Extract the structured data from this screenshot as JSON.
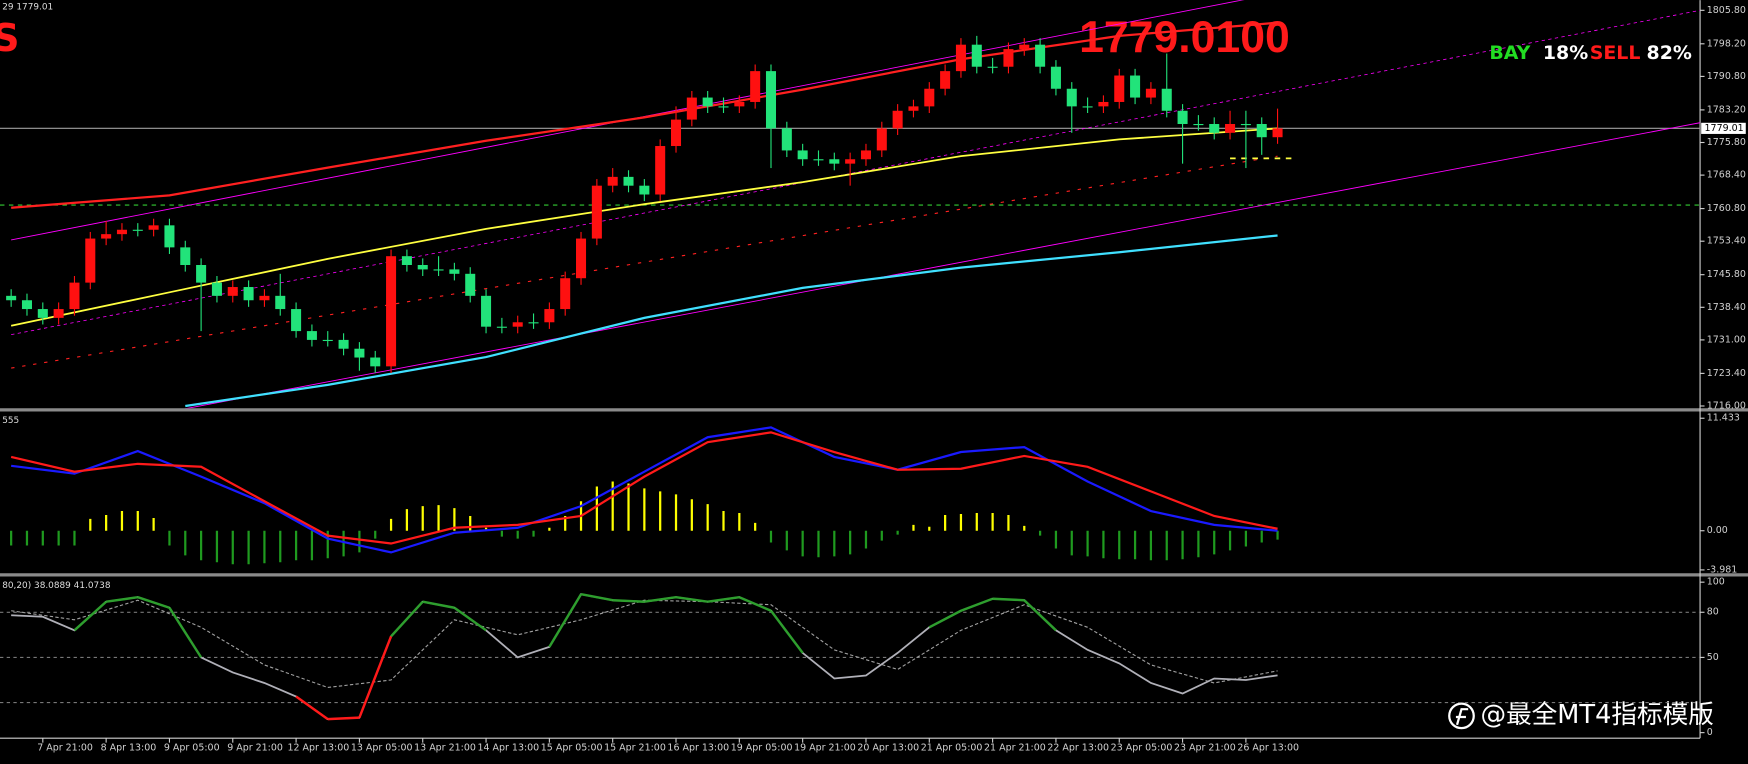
{
  "chart_data": [
    {
      "type": "candlestick",
      "title": "1779.0100",
      "header": "29 1779.01",
      "corner_text": "S",
      "sentiment": [
        {
          "name": "BAY",
          "value": 18,
          "value_label": "18%",
          "color": "#22dd22"
        },
        {
          "name": "SELL",
          "value": 82,
          "value_label": "82%",
          "color": "#ff1a1a"
        }
      ],
      "categories": [
        null,
        null,
        "7 Apr 21:00",
        null,
        null,
        null,
        "8 Apr 13:00",
        null,
        null,
        null,
        "9 Apr 05:00",
        null,
        null,
        null,
        "9 Apr 21:00",
        null,
        null,
        null,
        "12 Apr 13:00",
        null,
        null,
        null,
        "13 Apr 05:00",
        null,
        null,
        null,
        "13 Apr 21:00",
        null,
        null,
        null,
        "14 Apr 13:00",
        null,
        null,
        null,
        "15 Apr 05:00",
        null,
        null,
        null,
        "15 Apr 21:00",
        null,
        null,
        null,
        "16 Apr 13:00",
        null,
        null,
        null,
        "19 Apr 05:00",
        null,
        null,
        null,
        "19 Apr 21:00",
        null,
        null,
        null,
        "20 Apr 13:00",
        null,
        null,
        null,
        "21 Apr 05:00",
        null,
        null,
        null,
        "21 Apr 21:00",
        null,
        null,
        null,
        "22 Apr 13:00",
        null,
        null,
        null,
        "23 Apr 05:00",
        null,
        null,
        null,
        "23 Apr 21:00",
        null,
        null,
        null,
        "26 Apr 13:00",
        null,
        null
      ],
      "open": [
        1741,
        1740,
        1738,
        1736,
        1738,
        1744,
        1754,
        1755,
        1756,
        1756,
        1757,
        1752,
        1748,
        1744,
        1741,
        1743,
        1740,
        1741,
        1738,
        1733,
        1731,
        1731,
        1729,
        1727,
        1725,
        1750,
        1748,
        1747,
        1747,
        1746,
        1741,
        1734,
        1734,
        1735,
        1735,
        1738,
        1745,
        1754,
        1766,
        1768,
        1766,
        1764,
        1775,
        1781,
        1786,
        1784,
        1784,
        1785,
        1792,
        1779,
        1774,
        1772,
        1772,
        1771,
        1772,
        1774,
        1779,
        1783,
        1784,
        1788,
        1792,
        1798,
        1793,
        1793,
        1797,
        1798,
        1793,
        1788,
        1784,
        1784,
        1785,
        1791,
        1786,
        1788,
        1783,
        1780,
        1780,
        1778,
        1780,
        1780,
        1777
      ],
      "high": [
        1742.5,
        1741.5,
        1739.5,
        1739.5,
        1745.5,
        1755.5,
        1758,
        1757.5,
        1757.5,
        1758.5,
        1758.5,
        1753.5,
        1749.5,
        1745.5,
        1744.5,
        1744.5,
        1742.5,
        1746,
        1739.5,
        1734.5,
        1733,
        1732.5,
        1730.5,
        1728.5,
        1751.5,
        1751.5,
        1749.5,
        1750,
        1748.5,
        1747.5,
        1742.5,
        1736,
        1736.5,
        1737,
        1739.5,
        1746.5,
        1755.5,
        1767.5,
        1770,
        1769.5,
        1767.5,
        1776.5,
        1784,
        1787.5,
        1787.5,
        1786,
        1786.5,
        1793.5,
        1793.5,
        1780.5,
        1775.5,
        1774,
        1773.5,
        1773.5,
        1775.5,
        1780.5,
        1784.5,
        1785.5,
        1789.5,
        1793.5,
        1799.5,
        1800,
        1795,
        1798.5,
        1799.5,
        1799.5,
        1794.5,
        1789.5,
        1786,
        1786.5,
        1792.5,
        1792.5,
        1789.5,
        1796,
        1784.5,
        1782,
        1781.5,
        1783,
        1783,
        1781.5,
        1783.5
      ],
      "low": [
        1738.5,
        1736.5,
        1734.5,
        1734.5,
        1736.5,
        1742.5,
        1752.5,
        1753.5,
        1754.5,
        1754.5,
        1750.5,
        1746.5,
        1733,
        1739.5,
        1739.5,
        1738.5,
        1738.5,
        1736.5,
        1731.5,
        1729.5,
        1729.5,
        1727.5,
        1724,
        1723.5,
        1723.5,
        1746.5,
        1745.5,
        1745.5,
        1744.5,
        1739.5,
        1732.5,
        1732.5,
        1732.5,
        1733.5,
        1733.5,
        1736.5,
        1743.5,
        1752.5,
        1764.5,
        1764.5,
        1762.5,
        1762.5,
        1773.5,
        1779.5,
        1782.5,
        1782.5,
        1782.5,
        1783.5,
        1770,
        1772.5,
        1770.5,
        1770.5,
        1769.5,
        1766,
        1770.5,
        1772.5,
        1777.5,
        1781.5,
        1782.5,
        1786.5,
        1790.5,
        1791.5,
        1791.5,
        1791.5,
        1795.5,
        1791.5,
        1786.5,
        1778,
        1782.5,
        1782.5,
        1783.5,
        1784.5,
        1784.5,
        1781.5,
        1771,
        1778.5,
        1776.5,
        1776.5,
        1770,
        1773,
        1775.5
      ],
      "close": [
        1740,
        1738,
        1736,
        1738,
        1744,
        1754,
        1755,
        1756,
        1756,
        1757,
        1752,
        1748,
        1744,
        1741,
        1743,
        1740,
        1741,
        1738,
        1733,
        1731,
        1731,
        1729,
        1727,
        1725,
        1750,
        1748,
        1747,
        1747,
        1746,
        1741,
        1734,
        1734,
        1735,
        1735,
        1738,
        1745,
        1754,
        1766,
        1768,
        1766,
        1764,
        1775,
        1781,
        1786,
        1784,
        1784,
        1785,
        1792,
        1779,
        1774,
        1772,
        1772,
        1771,
        1772,
        1774,
        1779,
        1783,
        1784,
        1788,
        1792,
        1798,
        1793,
        1793,
        1797,
        1798,
        1793,
        1788,
        1784,
        1784,
        1785,
        1791,
        1786,
        1788,
        1783,
        1780,
        1780,
        1778,
        1780,
        1780,
        1777,
        1779.01
      ],
      "up_color": "#ff1010",
      "down_color": "#22e37a",
      "overlays": [
        {
          "color": "#ff00ff",
          "width": 0.8,
          "x": [
            0,
            80
          ],
          "values": [
            1753.7,
            1809.7
          ]
        },
        {
          "color": "#ff00ff",
          "width": 0.8,
          "x": [
            10,
            107
          ],
          "values": [
            1714.7,
            1780.5
          ]
        },
        {
          "color": "#ff00ff",
          "width": 0.7,
          "dash": "3,3",
          "x": [
            0,
            107
          ],
          "values": [
            1732.2,
            1806
          ]
        },
        {
          "color": "#ff2020",
          "width": 1,
          "dash": "3,7",
          "x": [
            0,
            80
          ],
          "values": [
            1724.6,
            1772.7
          ]
        },
        {
          "color": "#ff2020",
          "width": 2,
          "x": [
            0,
            10,
            20,
            30,
            40,
            50,
            60,
            70,
            80
          ],
          "values": [
            1761,
            1763.8,
            1770.1,
            1776.2,
            1781.5,
            1787.8,
            1794.7,
            1800,
            1803
          ]
        },
        {
          "color": "#40e0ff",
          "width": 2,
          "x": [
            11,
            20,
            30,
            40,
            50,
            60,
            70,
            80
          ],
          "values": [
            1716,
            1720.8,
            1727.1,
            1736,
            1742.8,
            1747.4,
            1750.9,
            1754.7
          ]
        },
        {
          "color": "#ffff40",
          "width": 1.6,
          "x": [
            0,
            10,
            20,
            30,
            40,
            50,
            60,
            70,
            80
          ],
          "values": [
            1734.2,
            1741.8,
            1749.4,
            1756.2,
            1761.8,
            1766.8,
            1772.7,
            1776.5,
            1779
          ]
        },
        {
          "color": "#ffff40",
          "width": 1.6,
          "dash": "5,5",
          "x": [
            77,
            81
          ],
          "values": [
            1772.2,
            1772.2
          ]
        }
      ],
      "hlines": [
        {
          "value": 1761.6,
          "color": "#33cc33",
          "dash": "4,4"
        }
      ],
      "last": {
        "value": 1779.01,
        "label": "1779.01",
        "color": "#a0a0a0"
      },
      "ylim": [
        1715.5,
        1808.1
      ],
      "yticks": [
        {
          "value": 1805.8,
          "label": "1805.80"
        },
        {
          "value": 1798.2,
          "label": "1798.20"
        },
        {
          "value": 1790.8,
          "label": "1790.80"
        },
        {
          "value": 1783.2,
          "label": "1783.20"
        },
        {
          "value": 1775.8,
          "label": "1775.80"
        },
        {
          "value": 1768.4,
          "label": "1768.40"
        },
        {
          "value": 1760.8,
          "label": "1760.80"
        },
        {
          "value": 1753.4,
          "label": "1753.40"
        },
        {
          "value": 1745.8,
          "label": "1745.80"
        },
        {
          "value": 1738.4,
          "label": "1738.40"
        },
        {
          "value": 1731,
          "label": "1731.00"
        },
        {
          "value": 1723.4,
          "label": "1723.40"
        },
        {
          "value": 1716,
          "label": "1716.00"
        }
      ]
    },
    {
      "type": "macd",
      "label": "555",
      "histogram": [
        -1.5,
        -1.5,
        -1.5,
        -1.5,
        -1.5,
        1.2,
        1.6,
        2.0,
        2.0,
        1.3,
        -1.5,
        -2.5,
        -3,
        -3.2,
        -3.4,
        -3.4,
        -3.3,
        -3.2,
        -3,
        -3,
        -2.8,
        -2.6,
        -2.2,
        -0.8,
        1.2,
        2.2,
        2.5,
        2.6,
        2.3,
        1.5,
        0.3,
        -0.6,
        -0.8,
        -0.6,
        0.3,
        1.5,
        3.0,
        4.5,
        5.0,
        4.8,
        4.3,
        4.0,
        3.7,
        3.2,
        2.7,
        2.0,
        1.8,
        0.8,
        -1.2,
        -2.0,
        -2.6,
        -2.7,
        -2.6,
        -2.4,
        -1.8,
        -1.0,
        -0.4,
        0.6,
        0.4,
        1.6,
        1.7,
        1.8,
        1.8,
        1.6,
        0.5,
        -0.5,
        -1.8,
        -2.5,
        -2.6,
        -2.8,
        -2.9,
        -2.9,
        -3.0,
        -3.0,
        -2.9,
        -2.7,
        -2.4,
        -2.0,
        -1.6,
        -1.2,
        -0.9
      ],
      "positive_color": "#ffff00",
      "negative_color": "#1f9a1f",
      "series": [
        {
          "color": "#1a1aff",
          "x": [
            0,
            4,
            8,
            12,
            16,
            20,
            24,
            28,
            32,
            36,
            40,
            44,
            48,
            52,
            56,
            60,
            64,
            68,
            72,
            76,
            80
          ],
          "values": [
            6.6,
            5.8,
            8.1,
            5.5,
            2.8,
            -0.8,
            -2.2,
            -0.2,
            0.3,
            2.5,
            6.0,
            9.5,
            10.5,
            7.5,
            6.2,
            8.0,
            8.5,
            5.0,
            2.0,
            0.6,
            0.0
          ]
        },
        {
          "color": "#ff1a1a",
          "x": [
            0,
            4,
            8,
            12,
            16,
            20,
            24,
            28,
            32,
            36,
            40,
            44,
            48,
            52,
            56,
            60,
            64,
            68,
            72,
            76,
            80
          ],
          "values": [
            7.5,
            6.0,
            6.8,
            6.5,
            3.0,
            -0.5,
            -1.3,
            0.3,
            0.6,
            1.5,
            5.5,
            9.0,
            10.0,
            8.0,
            6.2,
            6.3,
            7.6,
            6.5,
            4.0,
            1.5,
            0.2
          ]
        }
      ],
      "ylim": [
        -4.2,
        12.0
      ],
      "yticks": [
        11.433,
        {
          "value": 0,
          "label": "0.00"
        },
        -3.981
      ]
    },
    {
      "type": "stochastic",
      "label": "80,20) 38.0889 41.0738",
      "main": {
        "color": "#b0b0b8",
        "x": [
          0,
          2,
          4,
          6,
          8,
          10,
          12,
          14,
          16,
          18,
          20,
          22,
          24,
          26,
          28,
          30,
          32,
          34,
          36,
          38,
          40,
          42,
          44,
          46,
          48,
          50,
          52,
          54,
          56,
          58,
          60,
          62,
          64,
          66,
          68,
          70,
          72,
          74,
          76,
          78,
          80
        ],
        "values": [
          78,
          77,
          68,
          87,
          90,
          83,
          50,
          40,
          33,
          24,
          9,
          10,
          64,
          87,
          83,
          68,
          50,
          57,
          92,
          88,
          87,
          90,
          87,
          90,
          81,
          53,
          36,
          38,
          53,
          70,
          81,
          89,
          88,
          68,
          55,
          46,
          33,
          26,
          36,
          35,
          38.0889
        ]
      },
      "signal": {
        "color": "#a0a0a0",
        "x": [
          0,
          4,
          8,
          12,
          16,
          20,
          24,
          28,
          32,
          36,
          40,
          44,
          48,
          52,
          56,
          60,
          64,
          68,
          72,
          76,
          80
        ],
        "values": [
          81,
          75,
          88,
          70,
          45,
          30,
          35,
          75,
          65,
          75,
          88,
          87,
          85,
          55,
          42,
          68,
          85,
          70,
          45,
          33,
          41.0738
        ]
      },
      "levels": [
        80,
        50,
        20
      ],
      "above_color": "#2e9e2e",
      "below_color": "#ff1a1a",
      "ylim": [
        -2.2,
        103
      ],
      "yticks": [
        100,
        80,
        50,
        0
      ]
    }
  ],
  "watermark": "@最全MT4指标模版"
}
